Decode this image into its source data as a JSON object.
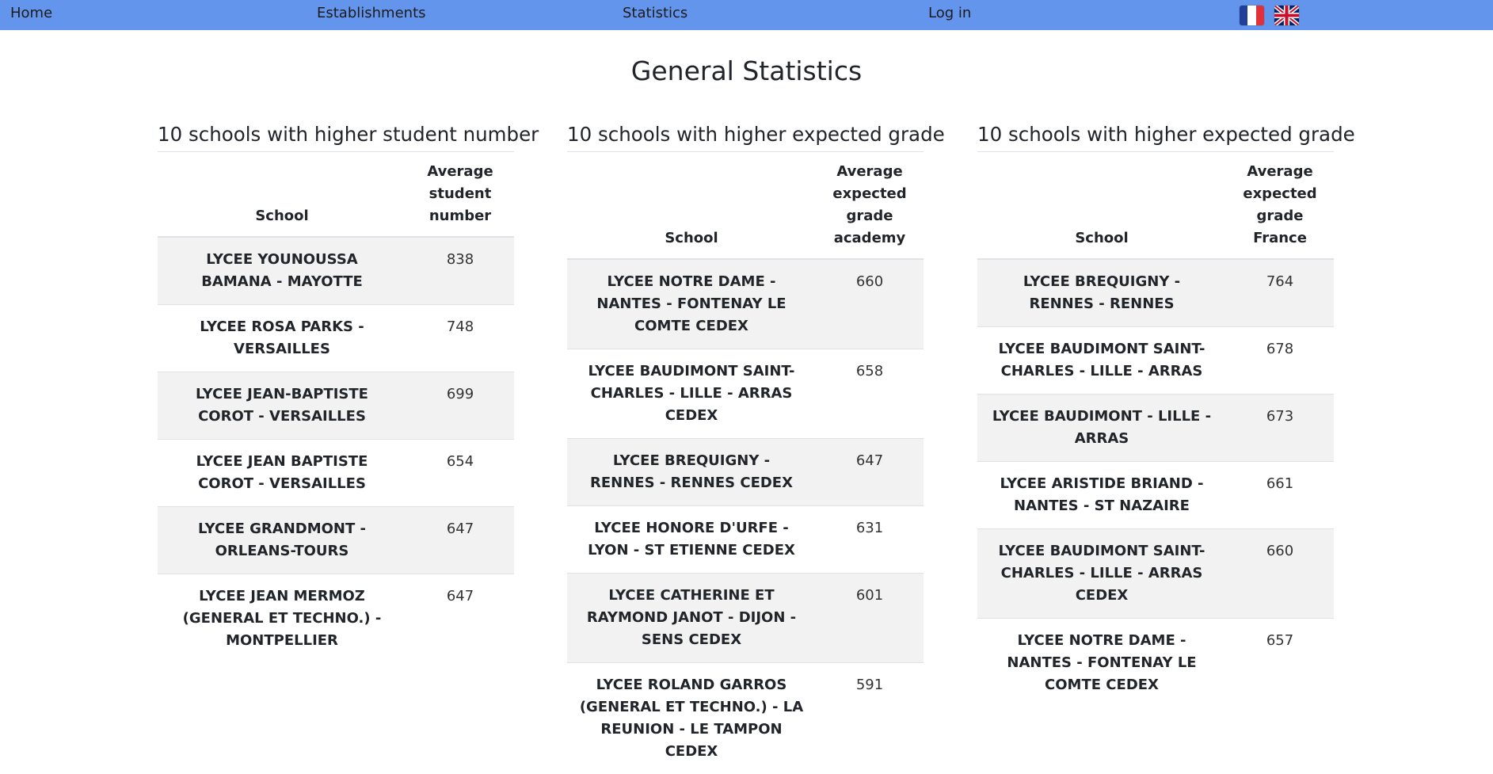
{
  "nav": {
    "home": "Home",
    "establishments": "Establishments",
    "statistics": "Statistics",
    "login": "Log in",
    "languages": [
      "fr-flag-icon",
      "uk-flag-icon"
    ]
  },
  "colors": {
    "navbar": "#6495ed",
    "stripe": "#f2f2f2"
  },
  "page": {
    "title": "General Statistics"
  },
  "blocks": [
    {
      "title": "10 schools with higher student number",
      "col_school": "School",
      "col_value": "Average student number",
      "rows": [
        {
          "school": "LYCEE YOUNOUSSA BAMANA - MAYOTTE",
          "value": "838"
        },
        {
          "school": "LYCEE ROSA PARKS - VERSAILLES",
          "value": "748"
        },
        {
          "school": "LYCEE JEAN-BAPTISTE COROT - VERSAILLES",
          "value": "699"
        },
        {
          "school": "LYCEE JEAN BAPTISTE COROT - VERSAILLES",
          "value": "654"
        },
        {
          "school": "LYCEE GRANDMONT - ORLEANS-TOURS",
          "value": "647"
        },
        {
          "school": "LYCEE JEAN MERMOZ (GENERAL ET TECHNO.) - MONTPELLIER",
          "value": "647"
        }
      ]
    },
    {
      "title": "10 schools with higher expected grade",
      "col_school": "School",
      "col_value": "Average expected grade academy",
      "rows": [
        {
          "school": "LYCEE NOTRE DAME - NANTES - FONTENAY LE COMTE CEDEX",
          "value": "660"
        },
        {
          "school": "LYCEE BAUDIMONT SAINT-CHARLES - LILLE - ARRAS CEDEX",
          "value": "658"
        },
        {
          "school": "LYCEE BREQUIGNY - RENNES - RENNES CEDEX",
          "value": "647"
        },
        {
          "school": "LYCEE HONORE D'URFE - LYON - ST ETIENNE CEDEX",
          "value": "631"
        },
        {
          "school": "LYCEE CATHERINE ET RAYMOND JANOT - DIJON - SENS CEDEX",
          "value": "601"
        },
        {
          "school": "LYCEE ROLAND GARROS (GENERAL ET TECHNO.) - LA REUNION - LE TAMPON CEDEX",
          "value": "591"
        }
      ]
    },
    {
      "title": "10 schools with higher expected grade",
      "col_school": "School",
      "col_value": "Average expected grade France",
      "rows": [
        {
          "school": "LYCEE BREQUIGNY - RENNES - RENNES",
          "value": "764"
        },
        {
          "school": "LYCEE BAUDIMONT SAINT-CHARLES - LILLE - ARRAS",
          "value": "678"
        },
        {
          "school": "LYCEE BAUDIMONT - LILLE - ARRAS",
          "value": "673"
        },
        {
          "school": "LYCEE ARISTIDE BRIAND - NANTES - ST NAZAIRE",
          "value": "661"
        },
        {
          "school": "LYCEE BAUDIMONT SAINT-CHARLES - LILLE - ARRAS CEDEX",
          "value": "660"
        },
        {
          "school": "LYCEE NOTRE DAME - NANTES - FONTENAY LE COMTE CEDEX",
          "value": "657"
        }
      ]
    }
  ]
}
